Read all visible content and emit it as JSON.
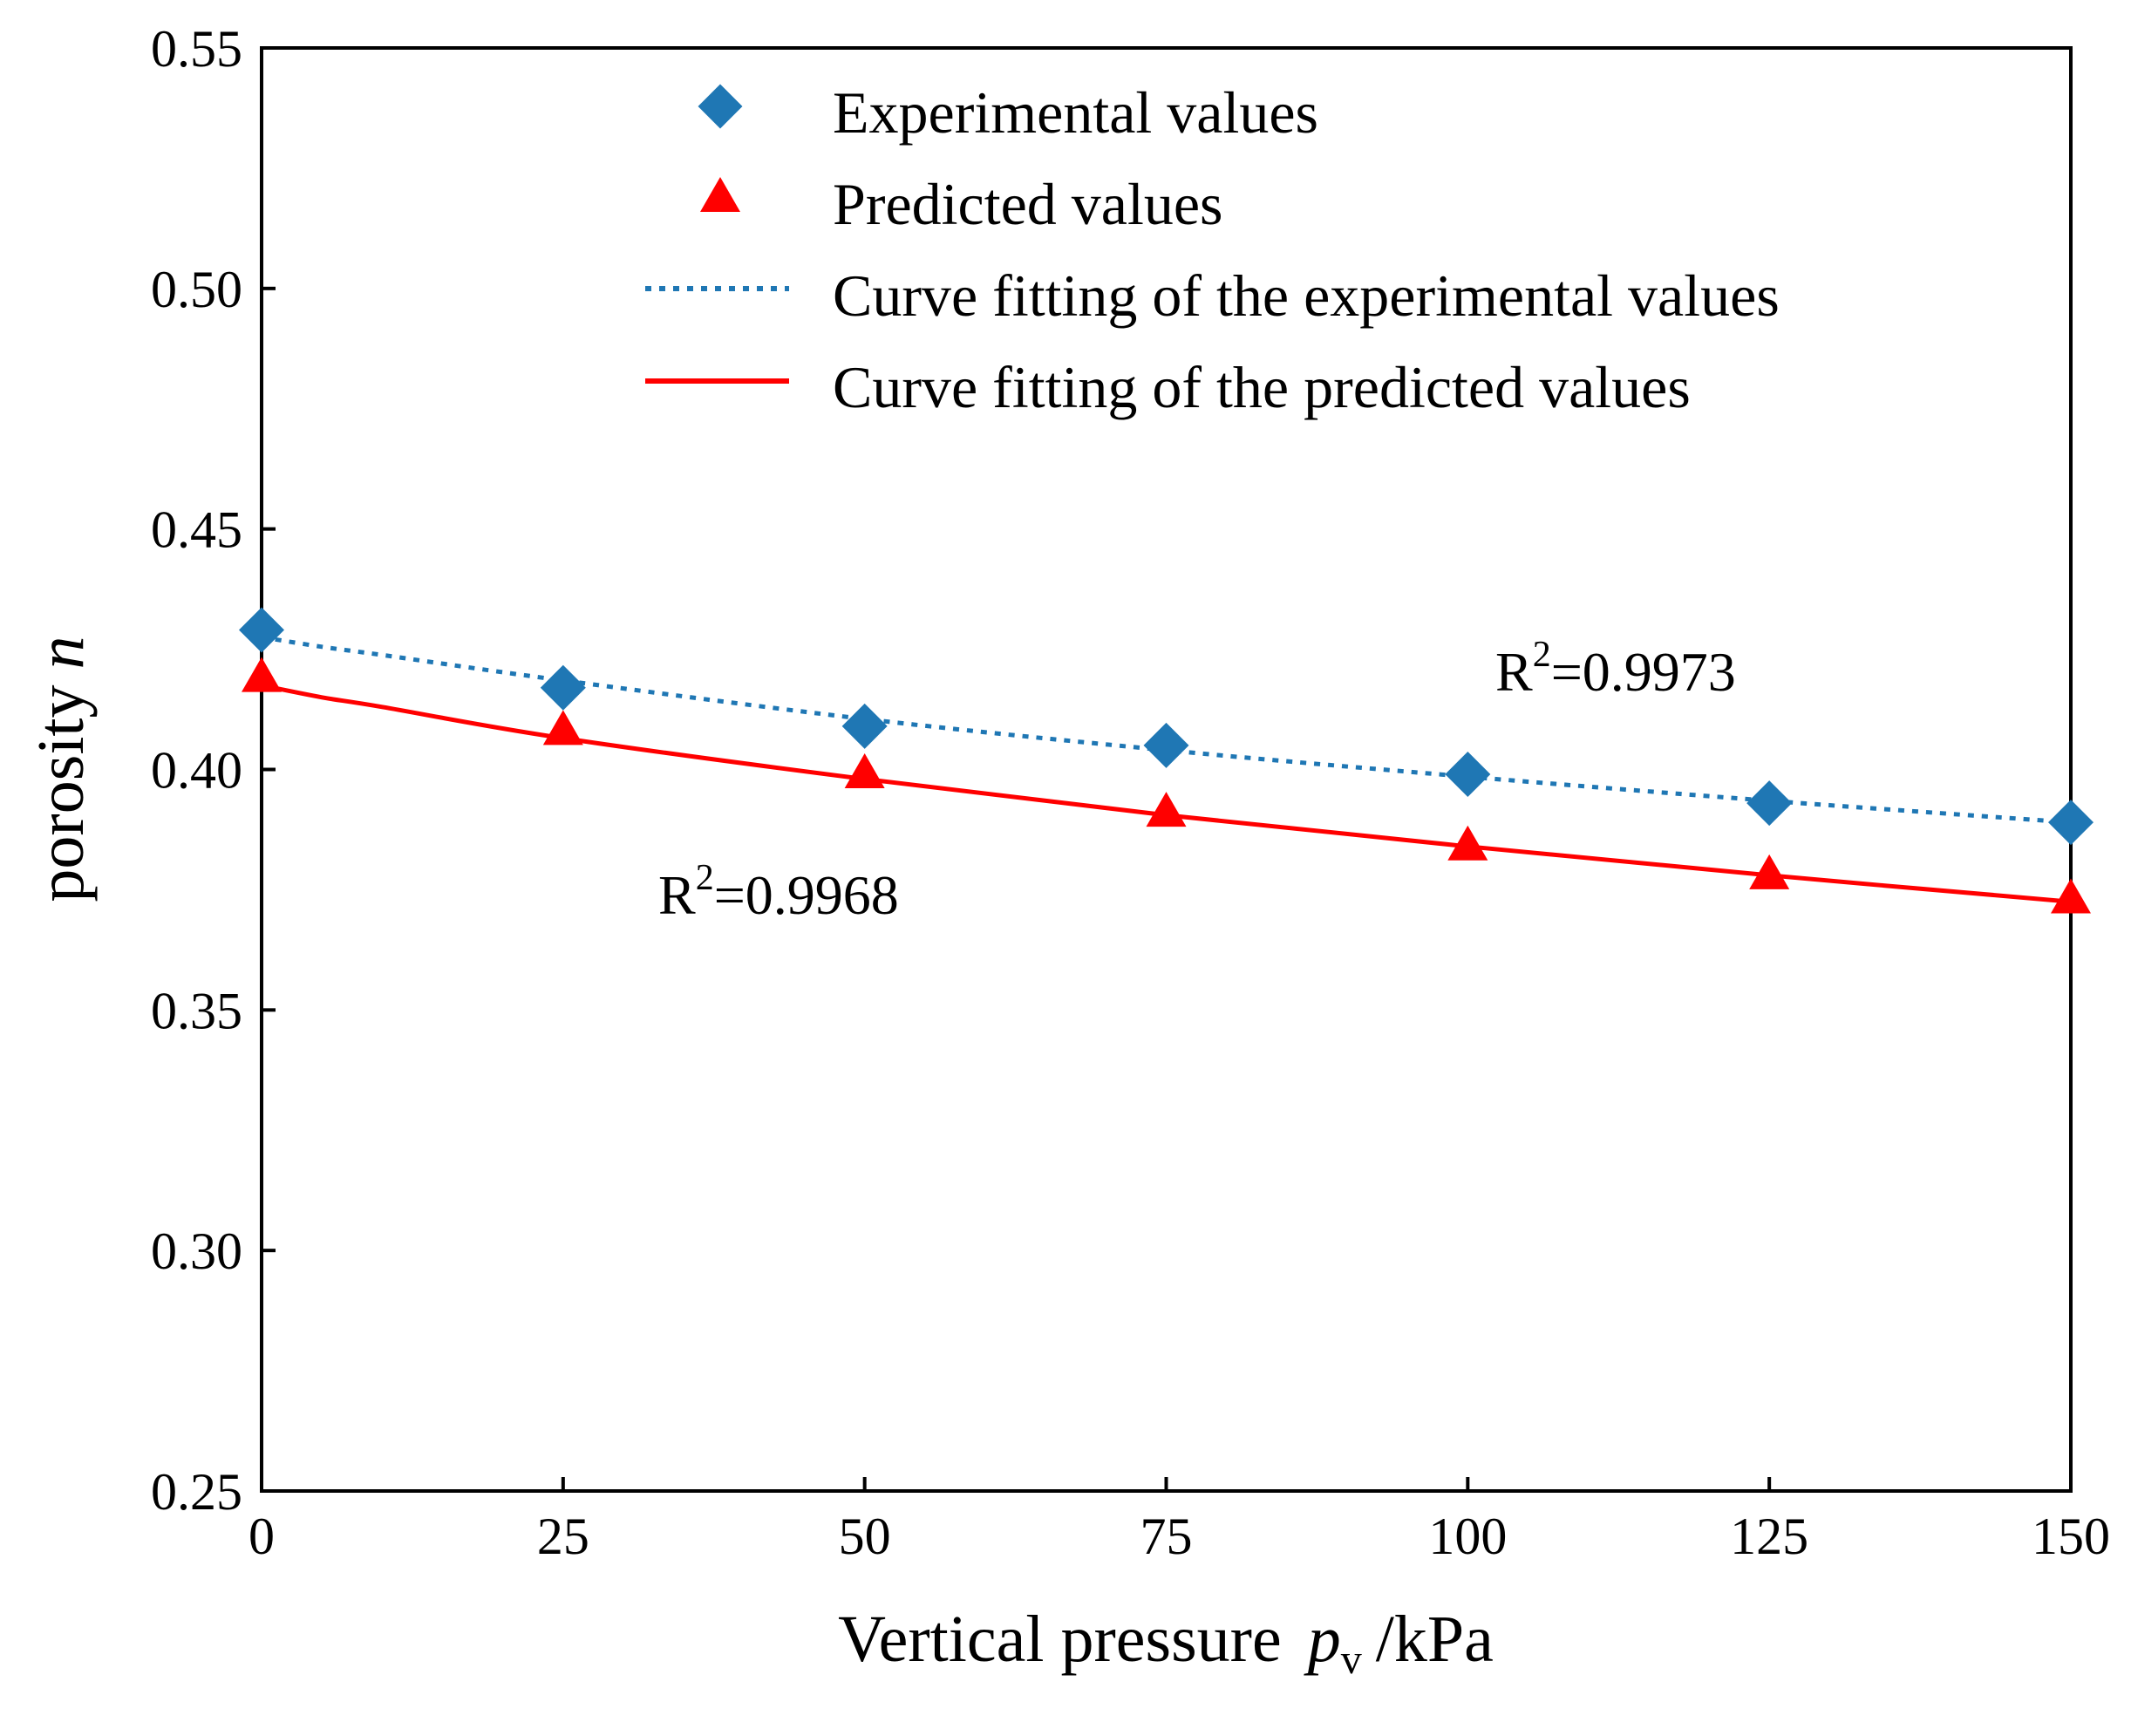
{
  "chart_data": {
    "type": "scatter",
    "title": "",
    "xlabel": {
      "main": "Vertical pressure",
      "symbol": "p",
      "subscript": "v",
      "unit": "/kPa"
    },
    "ylabel": {
      "main": "porosity",
      "symbol": "n"
    },
    "xlim": [
      0,
      150
    ],
    "ylim": [
      0.25,
      0.55
    ],
    "xticks": [
      "0",
      "25",
      "50",
      "75",
      "100",
      "125",
      "150"
    ],
    "yticks": [
      "0.25",
      "0.30",
      "0.35",
      "0.40",
      "0.45",
      "0.50",
      "0.55"
    ],
    "grid": false,
    "legend_position": "top",
    "x": [
      0,
      25,
      50,
      75,
      100,
      125,
      150
    ],
    "series": [
      {
        "name": "Experimental values",
        "kind": "marker",
        "marker": "diamond",
        "color": "#1f77b4",
        "values": [
          0.429,
          0.417,
          0.409,
          0.405,
          0.399,
          0.393,
          0.389
        ]
      },
      {
        "name": "Predicted values",
        "kind": "marker",
        "marker": "triangle",
        "color": "#ff0000",
        "values": [
          0.419,
          0.408,
          0.399,
          0.391,
          0.384,
          0.378,
          0.373
        ]
      },
      {
        "name": "Curve fitting of the experimental values",
        "kind": "line",
        "style": "dotted",
        "color": "#1f77b4",
        "x": [
          0,
          5,
          10,
          25,
          50,
          75,
          100,
          125,
          150
        ],
        "values": [
          0.4275,
          0.4255,
          0.4238,
          0.4185,
          0.4105,
          0.404,
          0.3985,
          0.3935,
          0.389
        ]
      },
      {
        "name": "Curve fitting of the predicted values",
        "kind": "line",
        "style": "solid",
        "color": "#ff0000",
        "x": [
          0,
          5,
          10,
          25,
          50,
          75,
          100,
          125,
          150
        ],
        "values": [
          0.4175,
          0.415,
          0.413,
          0.4065,
          0.398,
          0.3905,
          0.384,
          0.378,
          0.3725
        ]
      }
    ],
    "annotations": [
      {
        "series": "Experimental values",
        "base": "R",
        "sup": "2",
        "rest": "=0.9973"
      },
      {
        "series": "Predicted values",
        "base": "R",
        "sup": "2",
        "rest": "=0.9968"
      }
    ]
  }
}
